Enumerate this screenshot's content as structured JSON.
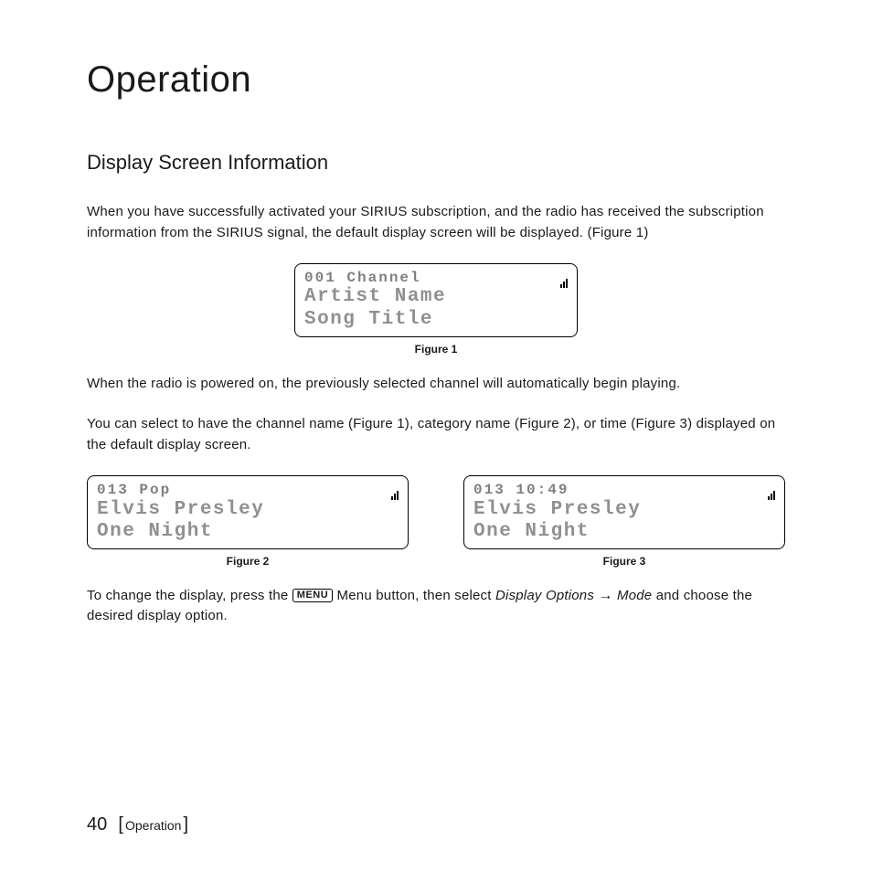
{
  "page": {
    "title": "Operation",
    "section_title": "Display Screen Information",
    "para1": "When you have successfully activated your SIRIUS subscription, and the radio has received the subscription information from the SIRIUS signal, the default display screen will be displayed. (Figure 1)",
    "para2": "When the radio is powered on, the previously selected channel will automatically begin playing.",
    "para3": "You can select to have the channel name (Figure 1), category name (Figure 2), or time (Figure 3) displayed on the default display screen.",
    "para4_prefix": "To change the display, press the ",
    "para4_menu_label": "MENU",
    "para4_mid": " Menu button, then select ",
    "para4_path1": "Display Options",
    "para4_path2": "Mode",
    "para4_suffix": " and choose the desired display option."
  },
  "figures": {
    "fig1": {
      "line1": "001 Channel",
      "line2": "Artist Name",
      "line3": "Song Title",
      "caption": "Figure 1"
    },
    "fig2": {
      "line1": "013 Pop",
      "line2": "Elvis Presley",
      "line3": "One Night",
      "caption": "Figure 2"
    },
    "fig3": {
      "line1": "013 10:49",
      "line2": "Elvis Presley",
      "line3": "One Night",
      "caption": "Figure 3"
    }
  },
  "footer": {
    "page_number": "40",
    "section_label": "Operation"
  },
  "style": {
    "text_color": "#1a1a1a",
    "lcd_text_color": "#888888",
    "lcd_border_color": "#000000",
    "background": "#ffffff"
  }
}
